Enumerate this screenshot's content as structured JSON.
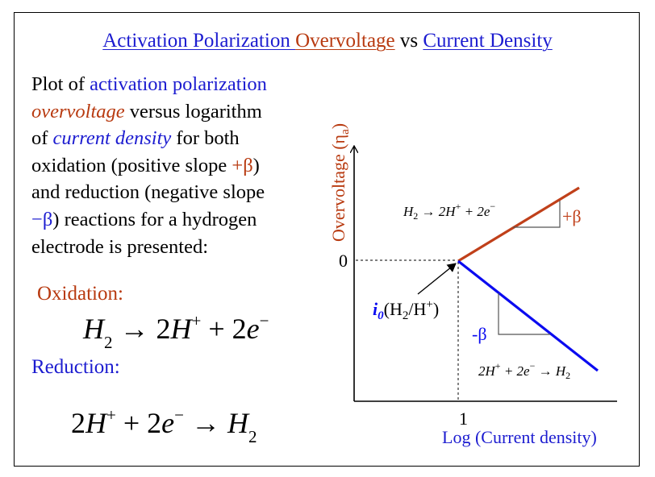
{
  "title": {
    "part1": "Activation Polarization ",
    "part2": "Overvoltage",
    "part3": " vs ",
    "part4": "Current Density"
  },
  "description": {
    "t1": "Plot of ",
    "t2": "activation polarization",
    "t3": "overvoltage",
    "t4": " versus logarithm",
    "t5": "of ",
    "t6": "current density",
    "t7": " for both",
    "t8": "oxidation (positive slope ",
    "t9": "+β",
    "t10": ")",
    "t11": "and reduction (negative slope",
    "t12": "−β",
    "t13": ") reactions for a hydrogen",
    "t14": "electrode is presented:"
  },
  "oxidation": {
    "label": "Oxidation:",
    "h": "H",
    "sub2": "2",
    "arrow": " → 2",
    "h2": "H",
    "plus": "+",
    "rest": " + 2",
    "e": "e",
    "minus": "−"
  },
  "reduction": {
    "label": "Reduction:",
    "two": "2",
    "h": "H",
    "plus": "+",
    "rest": " + 2",
    "e": "e",
    "minus": "−",
    "arrow": " → ",
    "h2": "H",
    "sub2": "2"
  },
  "graph": {
    "y_axis_label": "Overvoltage (η",
    "y_axis_sub": "a",
    "y_axis_close": ")",
    "zero_tick": "0",
    "one_tick": "1",
    "x_axis_label": "Log (Current density)",
    "oxidation_eq": {
      "a": "H",
      "b": "2",
      "c": " → 2H",
      "d": "+",
      "e": " + 2e",
      "f": "−"
    },
    "reduction_eq": {
      "a": "2H",
      "b": "+",
      "c": " + 2e",
      "d": "−",
      "e": " → H",
      "f": "2"
    },
    "plus_beta": "+β",
    "minus_beta": "-β",
    "exchange": {
      "i": "i",
      "zero": "0",
      "rest1": "(H",
      "sub": "2",
      "rest2": "/H",
      "sup": "+",
      "rest3": ")"
    },
    "colors": {
      "oxidation": "#c0401a",
      "reduction": "#0b0bf0",
      "axes": "#000000"
    }
  }
}
